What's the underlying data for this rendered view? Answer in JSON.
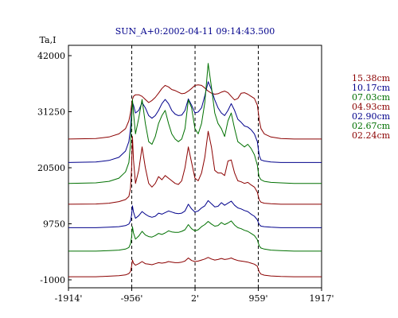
{
  "chart_data": {
    "type": "line",
    "title": "SUN_A+0:2002-04-11 09:14:43.500",
    "ylabel": "Ta,I",
    "xlabel": "",
    "xlim": [
      -1914,
      1917
    ],
    "ylim": [
      -1000,
      42000
    ],
    "x_ticks": [
      {
        "value": -1914,
        "label": "-1914'"
      },
      {
        "value": -956,
        "label": "-956'"
      },
      {
        "value": 2,
        "label": "2'"
      },
      {
        "value": 959,
        "label": "959'"
      },
      {
        "value": 1917,
        "label": "1917'"
      }
    ],
    "y_ticks": [
      42000,
      31250,
      20500,
      9750,
      -1000
    ],
    "vlines": [
      -956,
      2,
      959
    ],
    "grid": false,
    "legend_position": "right",
    "x": [
      -1914,
      -1500,
      -1300,
      -1150,
      -1050,
      -1000,
      -975,
      -960,
      -945,
      -930,
      -900,
      -850,
      -800,
      -750,
      -700,
      -650,
      -600,
      -550,
      -500,
      -450,
      -400,
      -350,
      -300,
      -250,
      -200,
      -150,
      -100,
      -50,
      0,
      50,
      100,
      150,
      200,
      250,
      300,
      350,
      400,
      450,
      500,
      550,
      600,
      650,
      700,
      750,
      800,
      850,
      900,
      945,
      960,
      975,
      1000,
      1050,
      1150,
      1300,
      1500,
      1917
    ],
    "series": [
      {
        "name": "15.38cm",
        "color": "#8b0000",
        "values": [
          26000,
          26100,
          26400,
          27000,
          28000,
          29500,
          31000,
          32500,
          33600,
          34200,
          34500,
          34500,
          34200,
          33600,
          33000,
          33400,
          34000,
          34800,
          35700,
          36300,
          36000,
          35500,
          35300,
          35000,
          34700,
          34800,
          35200,
          35700,
          36300,
          36400,
          36300,
          35800,
          35200,
          34800,
          34600,
          34700,
          35000,
          35200,
          34900,
          34200,
          33500,
          33800,
          34800,
          34900,
          34600,
          34200,
          33800,
          32500,
          31000,
          29500,
          28000,
          27000,
          26400,
          26100,
          26000,
          26000
        ]
      },
      {
        "name": "10.17cm",
        "color": "#00008b",
        "values": [
          21500,
          21600,
          21900,
          22500,
          23700,
          25500,
          28000,
          31000,
          33000,
          32500,
          31000,
          31500,
          33000,
          32000,
          30500,
          30000,
          30500,
          31500,
          32800,
          33600,
          32800,
          31500,
          30800,
          30500,
          30600,
          31500,
          33700,
          32500,
          31000,
          31200,
          32000,
          34300,
          37000,
          35500,
          33500,
          32000,
          31000,
          30500,
          31500,
          32800,
          31500,
          29800,
          29200,
          28500,
          28300,
          27800,
          27000,
          25500,
          24000,
          22800,
          22000,
          21800,
          21600,
          21500,
          21500,
          21500
        ]
      },
      {
        "name": "07.03cm",
        "color": "#007000",
        "values": [
          17500,
          17600,
          17900,
          18500,
          19700,
          21500,
          25000,
          29000,
          33600,
          31000,
          27000,
          30000,
          33600,
          29000,
          25500,
          25000,
          26500,
          29000,
          30500,
          31500,
          29000,
          27000,
          26000,
          25500,
          26000,
          28000,
          33500,
          32000,
          28000,
          27000,
          29000,
          33000,
          40500,
          36000,
          31000,
          29000,
          28000,
          26500,
          29500,
          31000,
          28000,
          25500,
          25000,
          24500,
          25000,
          24200,
          23000,
          21000,
          19500,
          18700,
          18200,
          17900,
          17700,
          17600,
          17500,
          17500
        ]
      },
      {
        "name": "04.93cm",
        "color": "#8b0000",
        "values": [
          13500,
          13550,
          13700,
          14000,
          14400,
          15000,
          16500,
          20000,
          26500,
          22000,
          17500,
          20000,
          24500,
          20500,
          17500,
          16800,
          17500,
          18800,
          18200,
          19000,
          18500,
          18000,
          17500,
          17300,
          18000,
          20500,
          24500,
          21500,
          18500,
          18000,
          19500,
          22500,
          27500,
          24500,
          20000,
          19500,
          19500,
          19000,
          21800,
          22000,
          19500,
          18000,
          17800,
          17500,
          17700,
          17200,
          16800,
          15800,
          15000,
          14300,
          13900,
          13700,
          13600,
          13500,
          13500,
          13500
        ]
      },
      {
        "name": "02.90cm",
        "color": "#00008b",
        "values": [
          9000,
          9000,
          9100,
          9200,
          9400,
          9700,
          10300,
          11300,
          13200,
          12000,
          10800,
          11300,
          12100,
          11600,
          11200,
          11000,
          11200,
          11800,
          11600,
          11900,
          12200,
          12000,
          11800,
          11700,
          11800,
          12200,
          13500,
          12600,
          12000,
          12200,
          12800,
          13200,
          14200,
          13600,
          13000,
          13100,
          13800,
          13300,
          13700,
          14100,
          13300,
          12800,
          12600,
          12300,
          12100,
          11600,
          11200,
          10500,
          10000,
          9600,
          9300,
          9200,
          9100,
          9000,
          9000,
          9000
        ]
      },
      {
        "name": "02.67cm",
        "color": "#007000",
        "values": [
          4500,
          4500,
          4600,
          4700,
          4900,
          5200,
          5900,
          7000,
          9200,
          8000,
          6800,
          7400,
          8300,
          7600,
          7300,
          7200,
          7500,
          7900,
          7700,
          8000,
          8400,
          8200,
          8100,
          8100,
          8300,
          8600,
          9600,
          8800,
          8400,
          8600,
          9200,
          9600,
          10200,
          9700,
          9300,
          9400,
          10000,
          9600,
          9900,
          10300,
          9500,
          9000,
          8800,
          8500,
          8300,
          7900,
          7500,
          6700,
          6000,
          5500,
          5100,
          4900,
          4700,
          4600,
          4500,
          4500
        ]
      },
      {
        "name": "02.24cm",
        "color": "#8b0000",
        "values": [
          -400,
          -400,
          -300,
          -200,
          -50,
          200,
          600,
          1500,
          2800,
          2200,
          1800,
          2100,
          2500,
          2100,
          2000,
          1900,
          2100,
          2300,
          2200,
          2300,
          2500,
          2400,
          2300,
          2300,
          2400,
          2600,
          3200,
          2700,
          2500,
          2600,
          2800,
          3000,
          3300,
          3000,
          2800,
          2900,
          3100,
          2900,
          3000,
          3200,
          2900,
          2700,
          2600,
          2500,
          2400,
          2200,
          2000,
          1600,
          1000,
          500,
          100,
          -100,
          -250,
          -350,
          -400,
          -400
        ]
      }
    ]
  }
}
